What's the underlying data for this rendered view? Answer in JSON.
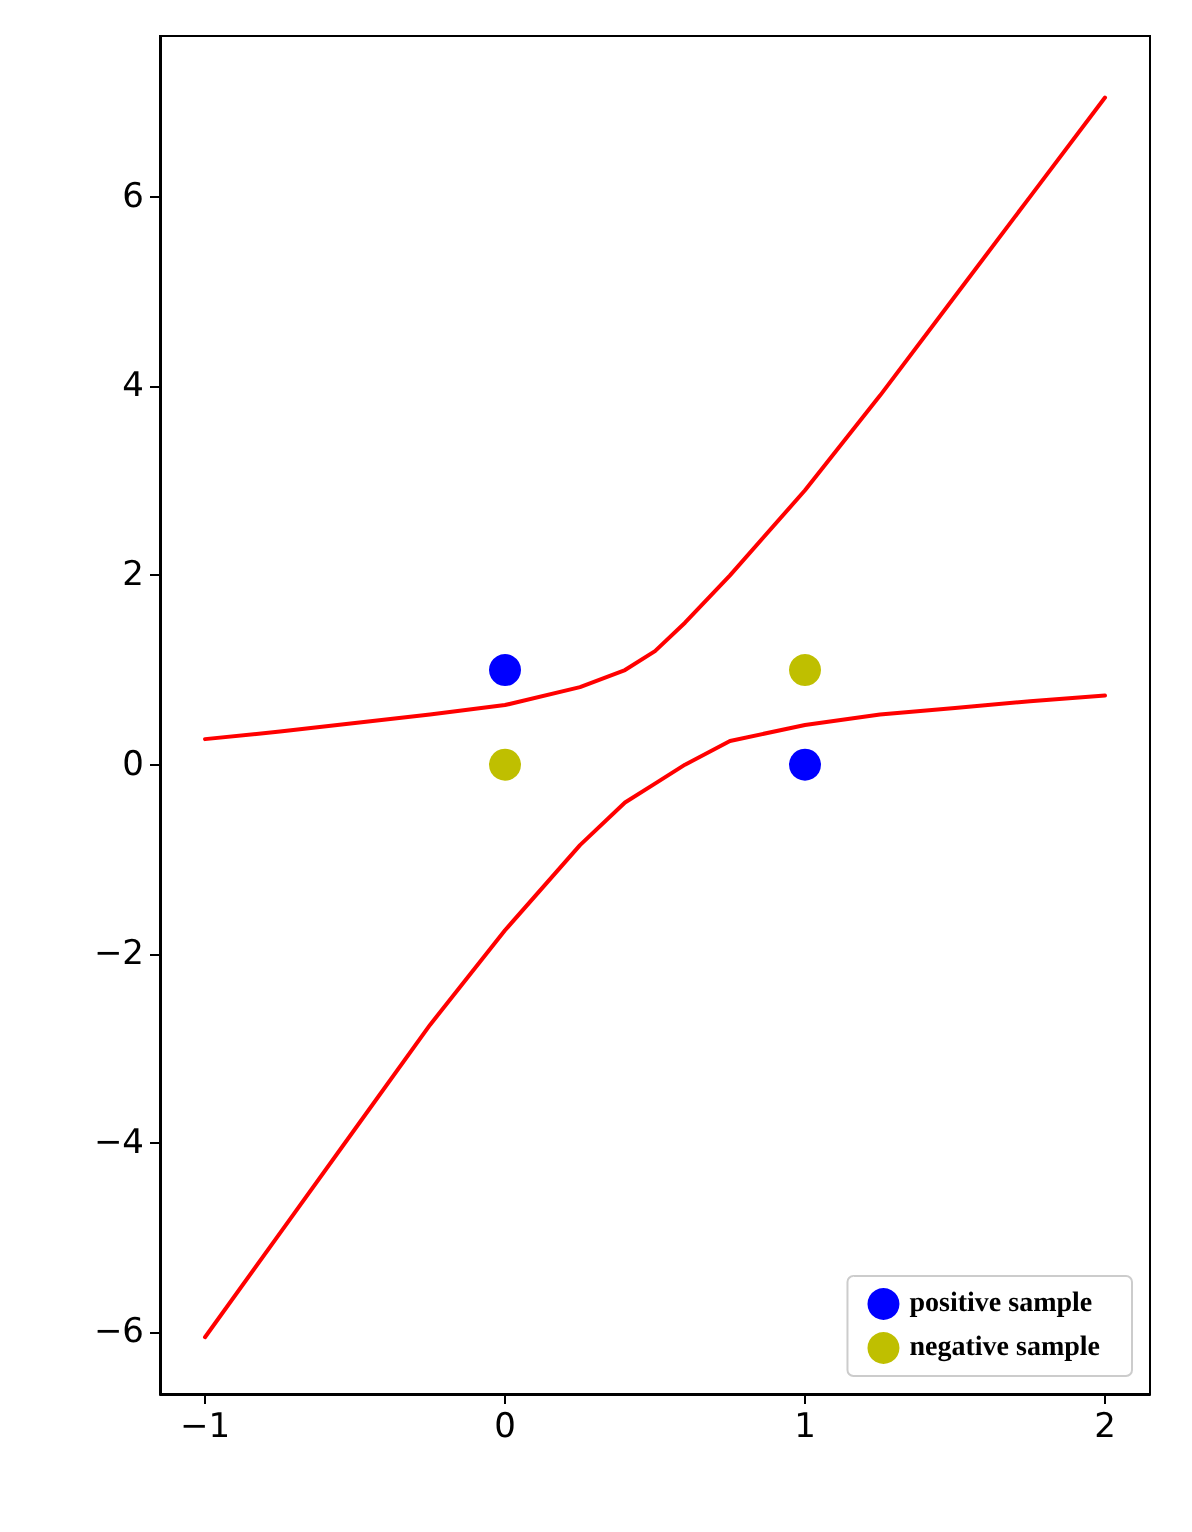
{
  "chart_data": {
    "type": "scatter",
    "xlim": [
      -1.15,
      2.15
    ],
    "ylim": [
      -6.65,
      7.7
    ],
    "xticks": [
      {
        "value": -1,
        "label": "−1"
      },
      0,
      1,
      2
    ],
    "yticks": [
      {
        "value": -6,
        "label": "−6"
      },
      {
        "value": -4,
        "label": "−4"
      },
      {
        "value": -2,
        "label": "−2"
      },
      0,
      2,
      4,
      6
    ],
    "grid": false,
    "legend": "bottom right",
    "series": [
      {
        "type": "line",
        "color": "#ff0000",
        "marker": "none",
        "line_style": "solid",
        "x": [
          -1,
          -0.75,
          -0.5,
          -0.25,
          0,
          0.25,
          0.4,
          0.5,
          0.6,
          0.75,
          1,
          1.25,
          1.5,
          1.75,
          2
        ],
        "values": [
          0.27,
          0.35,
          0.44,
          0.53,
          0.63,
          0.82,
          1.0,
          1.2,
          1.5,
          2.0,
          2.9,
          3.9,
          4.95,
          6.0,
          7.05
        ]
      },
      {
        "type": "line",
        "color": "#ff0000",
        "marker": "none",
        "line_style": "solid",
        "x": [
          -1,
          -0.75,
          -0.5,
          -0.25,
          0,
          0.25,
          0.4,
          0.5,
          0.6,
          0.75,
          1,
          1.25,
          1.5,
          1.75,
          2
        ],
        "values": [
          -6.05,
          -4.95,
          -3.85,
          -2.75,
          -1.75,
          -0.85,
          -0.4,
          -0.2,
          0.0,
          0.25,
          0.42,
          0.53,
          0.6,
          0.67,
          0.73
        ]
      },
      {
        "name": "positive sample",
        "color": "#0000ff",
        "marker": "circle",
        "x": [
          0,
          1
        ],
        "values": [
          1,
          0
        ]
      },
      {
        "name": "negative sample",
        "color": "#bfbf00",
        "marker": "circle",
        "x": [
          0,
          1
        ],
        "values": [
          0,
          1
        ]
      }
    ]
  }
}
